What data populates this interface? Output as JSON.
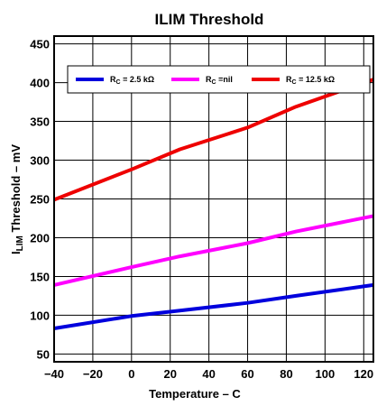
{
  "chart_data": {
    "type": "line",
    "title": "ILIM Threshold",
    "xlabel": "Temperature –  C",
    "ylabel": {
      "main": "I",
      "sub": "LIM",
      "rest": " Threshold – mV"
    },
    "x_ticks": [
      "−40",
      "−20",
      "0",
      "20",
      "40",
      "60",
      "80",
      "100",
      "120"
    ],
    "y_ticks": [
      "50",
      "100",
      "150",
      "200",
      "250",
      "300",
      "350",
      "400",
      "450"
    ],
    "xlim": [
      -40,
      125
    ],
    "ylim": [
      40,
      460
    ],
    "grid": true,
    "legend_position": "top",
    "series": [
      {
        "name": "RC = 2.5 kΩ",
        "label_main": "R",
        "label_sub": "C",
        "label_rest": " = 2.5 kΩ",
        "color": "#0000dd",
        "x": [
          -40,
          0,
          25,
          60,
          85,
          125
        ],
        "y": [
          83,
          99,
          106,
          116,
          125,
          139
        ]
      },
      {
        "name": "RC =nil",
        "label_main": "R",
        "label_sub": "C",
        "label_rest": " =nil",
        "color": "#ff00ff",
        "x": [
          -40,
          0,
          25,
          60,
          85,
          125
        ],
        "y": [
          139,
          162,
          176,
          193,
          208,
          228
        ]
      },
      {
        "name": "RC = 12.5 kΩ",
        "label_main": "R",
        "label_sub": "C",
        "label_rest": " = 12.5 kΩ",
        "color": "#ee0000",
        "x": [
          -40,
          0,
          25,
          60,
          85,
          125
        ],
        "y": [
          249,
          288,
          314,
          342,
          369,
          404
        ]
      }
    ]
  }
}
